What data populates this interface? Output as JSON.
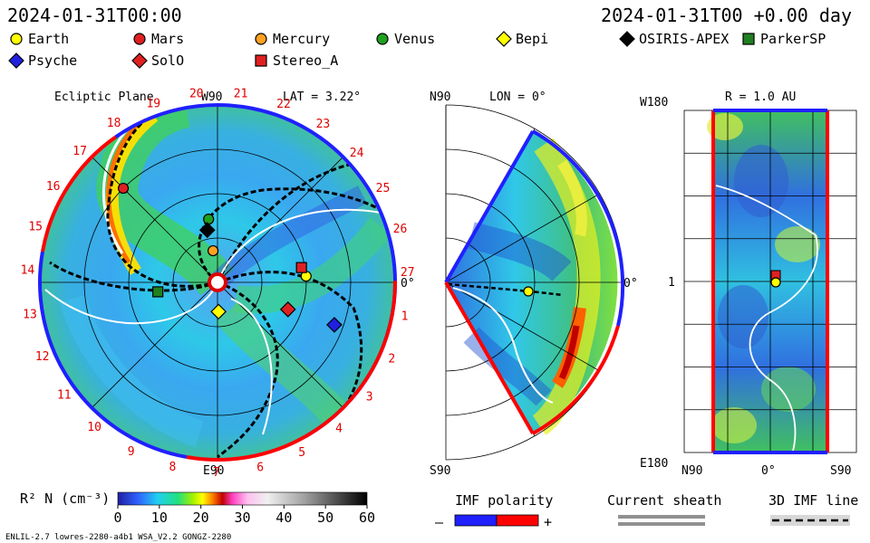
{
  "header": {
    "left_time": "2024-01-31T00:00",
    "right_time": "2024-01-31T00 +0.00 day"
  },
  "legend": [
    {
      "name": "Earth",
      "shape": "circle",
      "color": "#ffff00"
    },
    {
      "name": "Mars",
      "shape": "circle",
      "color": "#e02020"
    },
    {
      "name": "Mercury",
      "shape": "circle",
      "color": "#ffa020"
    },
    {
      "name": "Venus",
      "shape": "circle",
      "color": "#20a020"
    },
    {
      "name": "Bepi",
      "shape": "diamond",
      "color": "#ffff00"
    },
    {
      "name": "OSIRIS-APEX",
      "shape": "diamond",
      "color": "#000000"
    },
    {
      "name": "ParkerSP",
      "shape": "square",
      "color": "#208020"
    },
    {
      "name": "Psyche",
      "shape": "diamond",
      "color": "#2020e0"
    },
    {
      "name": "SolO",
      "shape": "diamond",
      "color": "#e02020"
    },
    {
      "name": "Stereo_A",
      "shape": "square",
      "color": "#e02020"
    }
  ],
  "chart_data": [
    {
      "type": "heatmap",
      "title": "Ecliptic Plane",
      "lat_label": "LAT = 3.22°",
      "top_label": "W90",
      "bottom_label": "E90",
      "right_label": "0°",
      "carrington_ticks": [
        "1",
        "2",
        "3",
        "4",
        "5",
        "6",
        "7",
        "8",
        "9",
        "10",
        "11",
        "12",
        "13",
        "14",
        "15",
        "16",
        "17",
        "18",
        "19",
        "20",
        "21",
        "22",
        "23",
        "24",
        "25",
        "26",
        "27"
      ],
      "bodies": [
        {
          "name": "Earth",
          "r_au": 1.0,
          "angle_deg": 4
        },
        {
          "name": "Stereo_A",
          "r_au": 0.96,
          "angle_deg": 10
        },
        {
          "name": "Mars",
          "r_au": 1.5,
          "angle_deg": 135
        },
        {
          "name": "Mercury",
          "r_au": 0.36,
          "angle_deg": 98
        },
        {
          "name": "Venus",
          "r_au": 0.72,
          "angle_deg": 98
        },
        {
          "name": "OSIRIS-APEX",
          "r_au": 0.6,
          "angle_deg": 101
        },
        {
          "name": "Bepi",
          "r_au": 0.33,
          "angle_deg": -88
        },
        {
          "name": "ParkerSP",
          "r_au": 0.68,
          "angle_deg": 189
        },
        {
          "name": "SolO",
          "r_au": 0.85,
          "angle_deg": -21
        },
        {
          "name": "Psyche",
          "r_au": 1.4,
          "angle_deg": -20
        }
      ]
    },
    {
      "type": "heatmap",
      "title": "LON = 0°",
      "top_label": "N90",
      "bottom_label": "S90",
      "right_label": "0°"
    },
    {
      "type": "heatmap",
      "title": "R = 1.0 AU",
      "top_label": "W180",
      "bottom_label": "E180",
      "left_tick": "1",
      "xticks": [
        "N90",
        "0°",
        "S90"
      ]
    }
  ],
  "colorbar": {
    "label": "R² N (cm⁻³)",
    "ticks": [
      "0",
      "10",
      "20",
      "30",
      "40",
      "50",
      "60"
    ],
    "range": [
      0,
      60
    ]
  },
  "key": {
    "imf_polarity": "IMF polarity",
    "minus": "–",
    "plus": "+",
    "current_sheath": "Current sheath",
    "imf_line": "3D IMF line"
  },
  "footer": {
    "left": "ENLIL-2.7 lowres-2280-a4b1 WSA_V2.2 GONGZ-2280"
  }
}
